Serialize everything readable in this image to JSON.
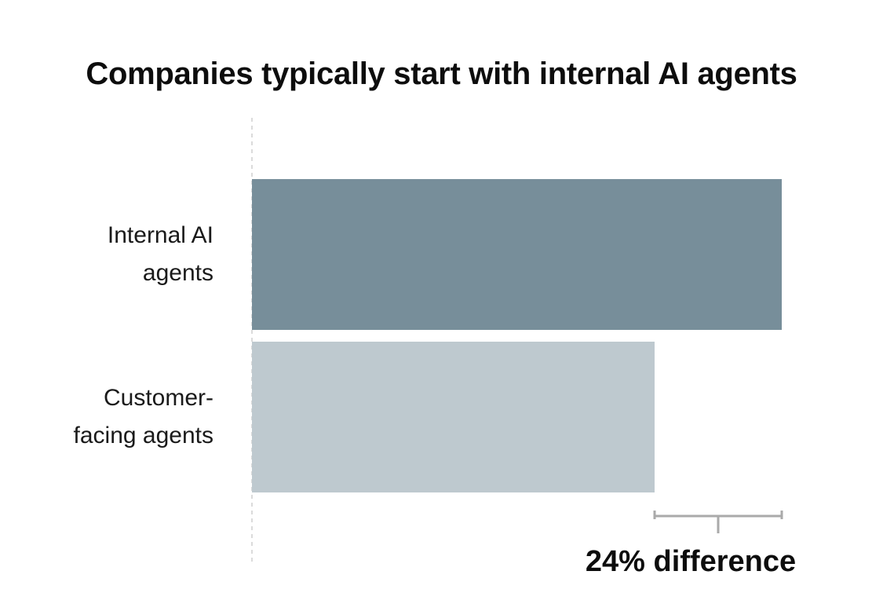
{
  "chart_data": {
    "type": "bar",
    "orientation": "horizontal",
    "title": "Companies typically start with internal AI agents",
    "categories": [
      "Internal AI\nagents",
      "Customer-\nfacing agents"
    ],
    "values": [
      100,
      76
    ],
    "colors": [
      "#778e9a",
      "#bec9cf"
    ],
    "annotation": {
      "text": "24% difference",
      "between_categories": [
        0,
        1
      ]
    },
    "xlim": [
      0,
      100
    ],
    "grid": false,
    "legend": "none"
  }
}
